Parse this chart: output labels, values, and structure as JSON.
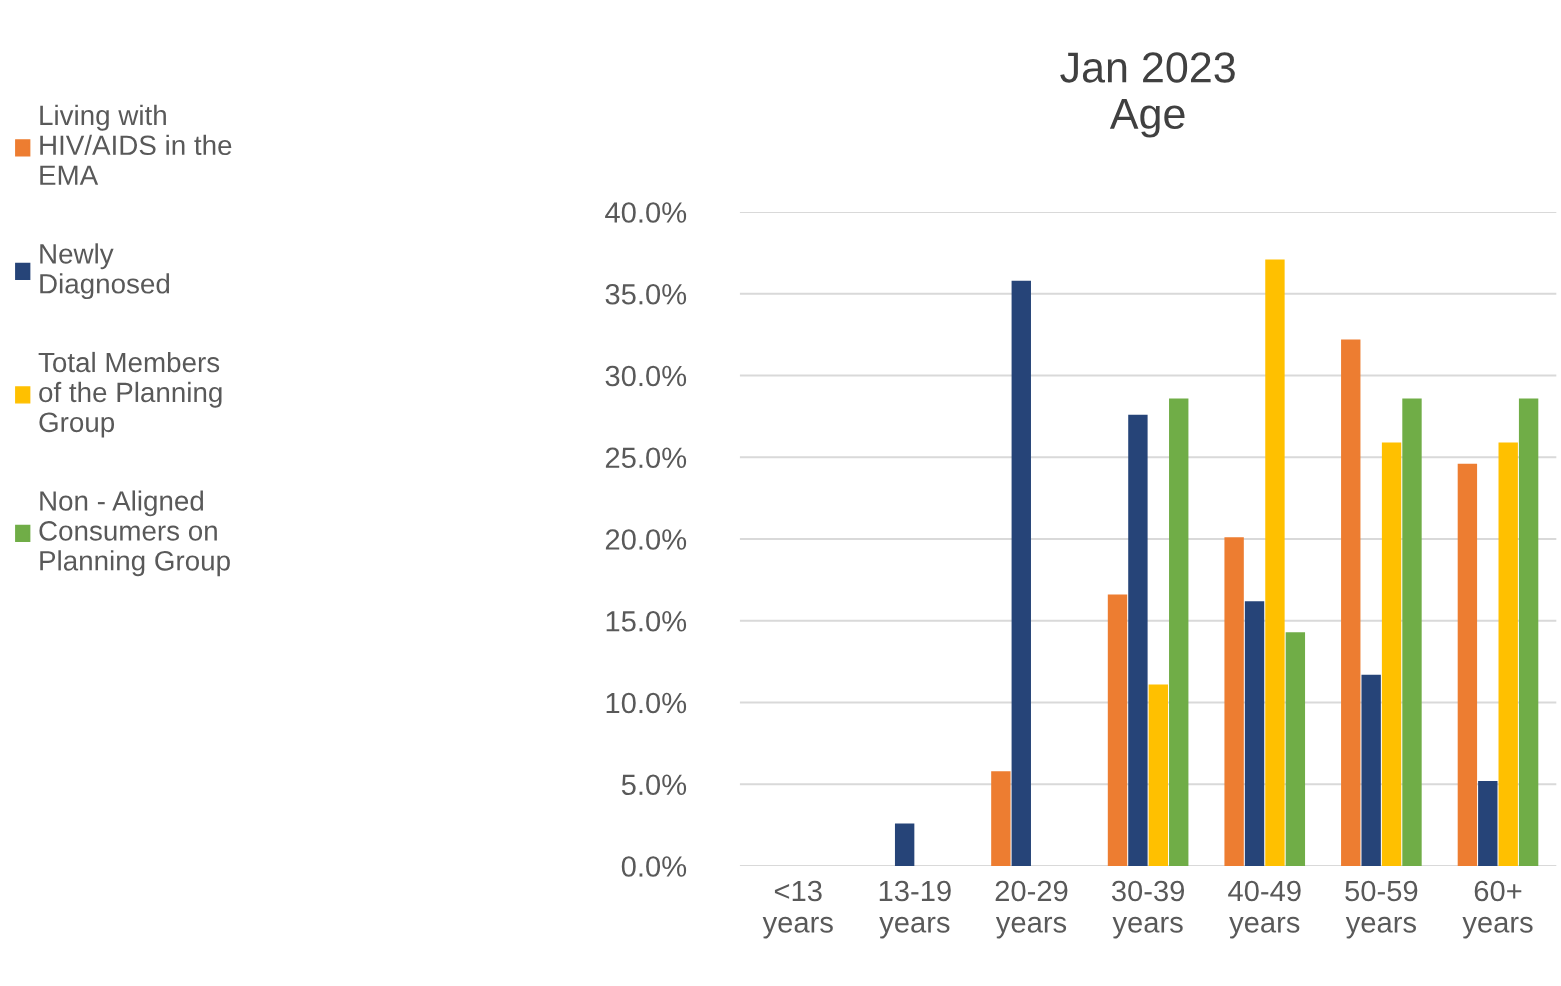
{
  "chart_data": {
    "type": "bar",
    "title": "Jan 2023\nAge",
    "categories": [
      "<13\nyears",
      "13-19\nyears",
      "20-29\nyears",
      "30-39\nyears",
      "40-49\nyears",
      "50-59\nyears",
      "60+\nyears"
    ],
    "series": [
      {
        "name": "Living with\nHIV/AIDS in the\nEMA",
        "color": "#ed7d31",
        "values": [
          0,
          0,
          5.8,
          16.6,
          20.1,
          32.2,
          24.6
        ]
      },
      {
        "name": "Newly\nDiagnosed",
        "color": "#264478",
        "values": [
          0,
          2.6,
          35.8,
          27.6,
          16.2,
          11.7,
          5.2
        ]
      },
      {
        "name": "Total Members\nof the Planning\nGroup",
        "color": "#ffc000",
        "values": [
          0,
          0,
          0,
          11.1,
          37.1,
          25.9,
          25.9
        ]
      },
      {
        "name": "Non - Aligned\nConsumers on\nPlanning Group",
        "color": "#70ad47",
        "values": [
          0,
          0,
          0,
          28.6,
          14.3,
          28.6,
          28.6
        ]
      }
    ],
    "ylim": [
      0,
      40
    ],
    "yticks": [
      {
        "value": 0,
        "label": "0.0%"
      },
      {
        "value": 5,
        "label": "5.0%"
      },
      {
        "value": 10,
        "label": "10.0%"
      },
      {
        "value": 15,
        "label": "15.0%"
      },
      {
        "value": 20,
        "label": "20.0%"
      },
      {
        "value": 25,
        "label": "25.0%"
      },
      {
        "value": 30,
        "label": "30.0%"
      },
      {
        "value": 35,
        "label": "35.0%"
      },
      {
        "value": 40,
        "label": "40.0%"
      }
    ],
    "grid": "y",
    "legend": "left"
  }
}
